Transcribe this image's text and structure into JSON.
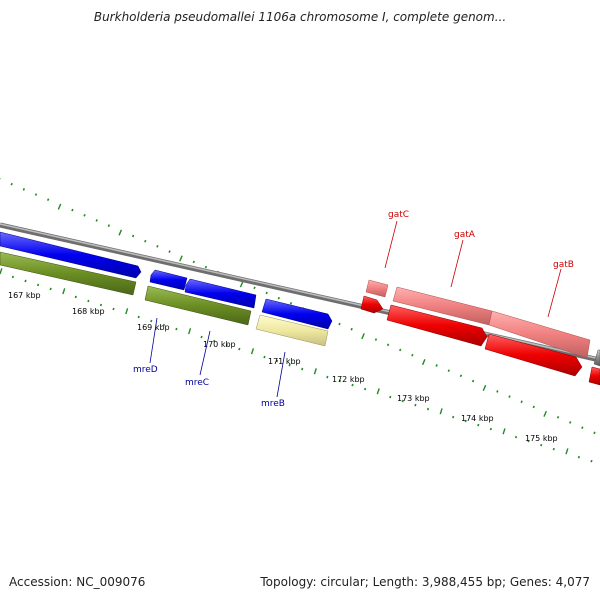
{
  "title": "Burkholderia pseudomallei 1106a chromosome I, complete genom...",
  "footer": {
    "accession": "Accession: NC_009076",
    "summary": "Topology: circular; Length: 3,988,455 bp; Genes: 4,077"
  },
  "scale_labels": [
    "167 kbp",
    "168 kbp",
    "169 kbp",
    "170 kbp",
    "171 kbp",
    "172 kbp",
    "173 kbp",
    "174 kbp",
    "175 kbp"
  ],
  "gene_labels": [
    {
      "text": "mreD",
      "color": "#000099"
    },
    {
      "text": "mreC",
      "color": "#000099"
    },
    {
      "text": "mreB",
      "color": "#000099"
    },
    {
      "text": "gatC",
      "color": "#cc0000"
    },
    {
      "text": "gatA",
      "color": "#cc0000"
    },
    {
      "text": "gatB",
      "color": "#cc0000"
    }
  ],
  "colors": {
    "backbone": "#8a8a8a",
    "forward_cds": "#0000ee",
    "green_feature": "#6b8e23",
    "yellow_feature": "#eee8a0",
    "red_cds": "#ee0000",
    "pink_cds": "#f08080",
    "tick": "#228b22"
  }
}
